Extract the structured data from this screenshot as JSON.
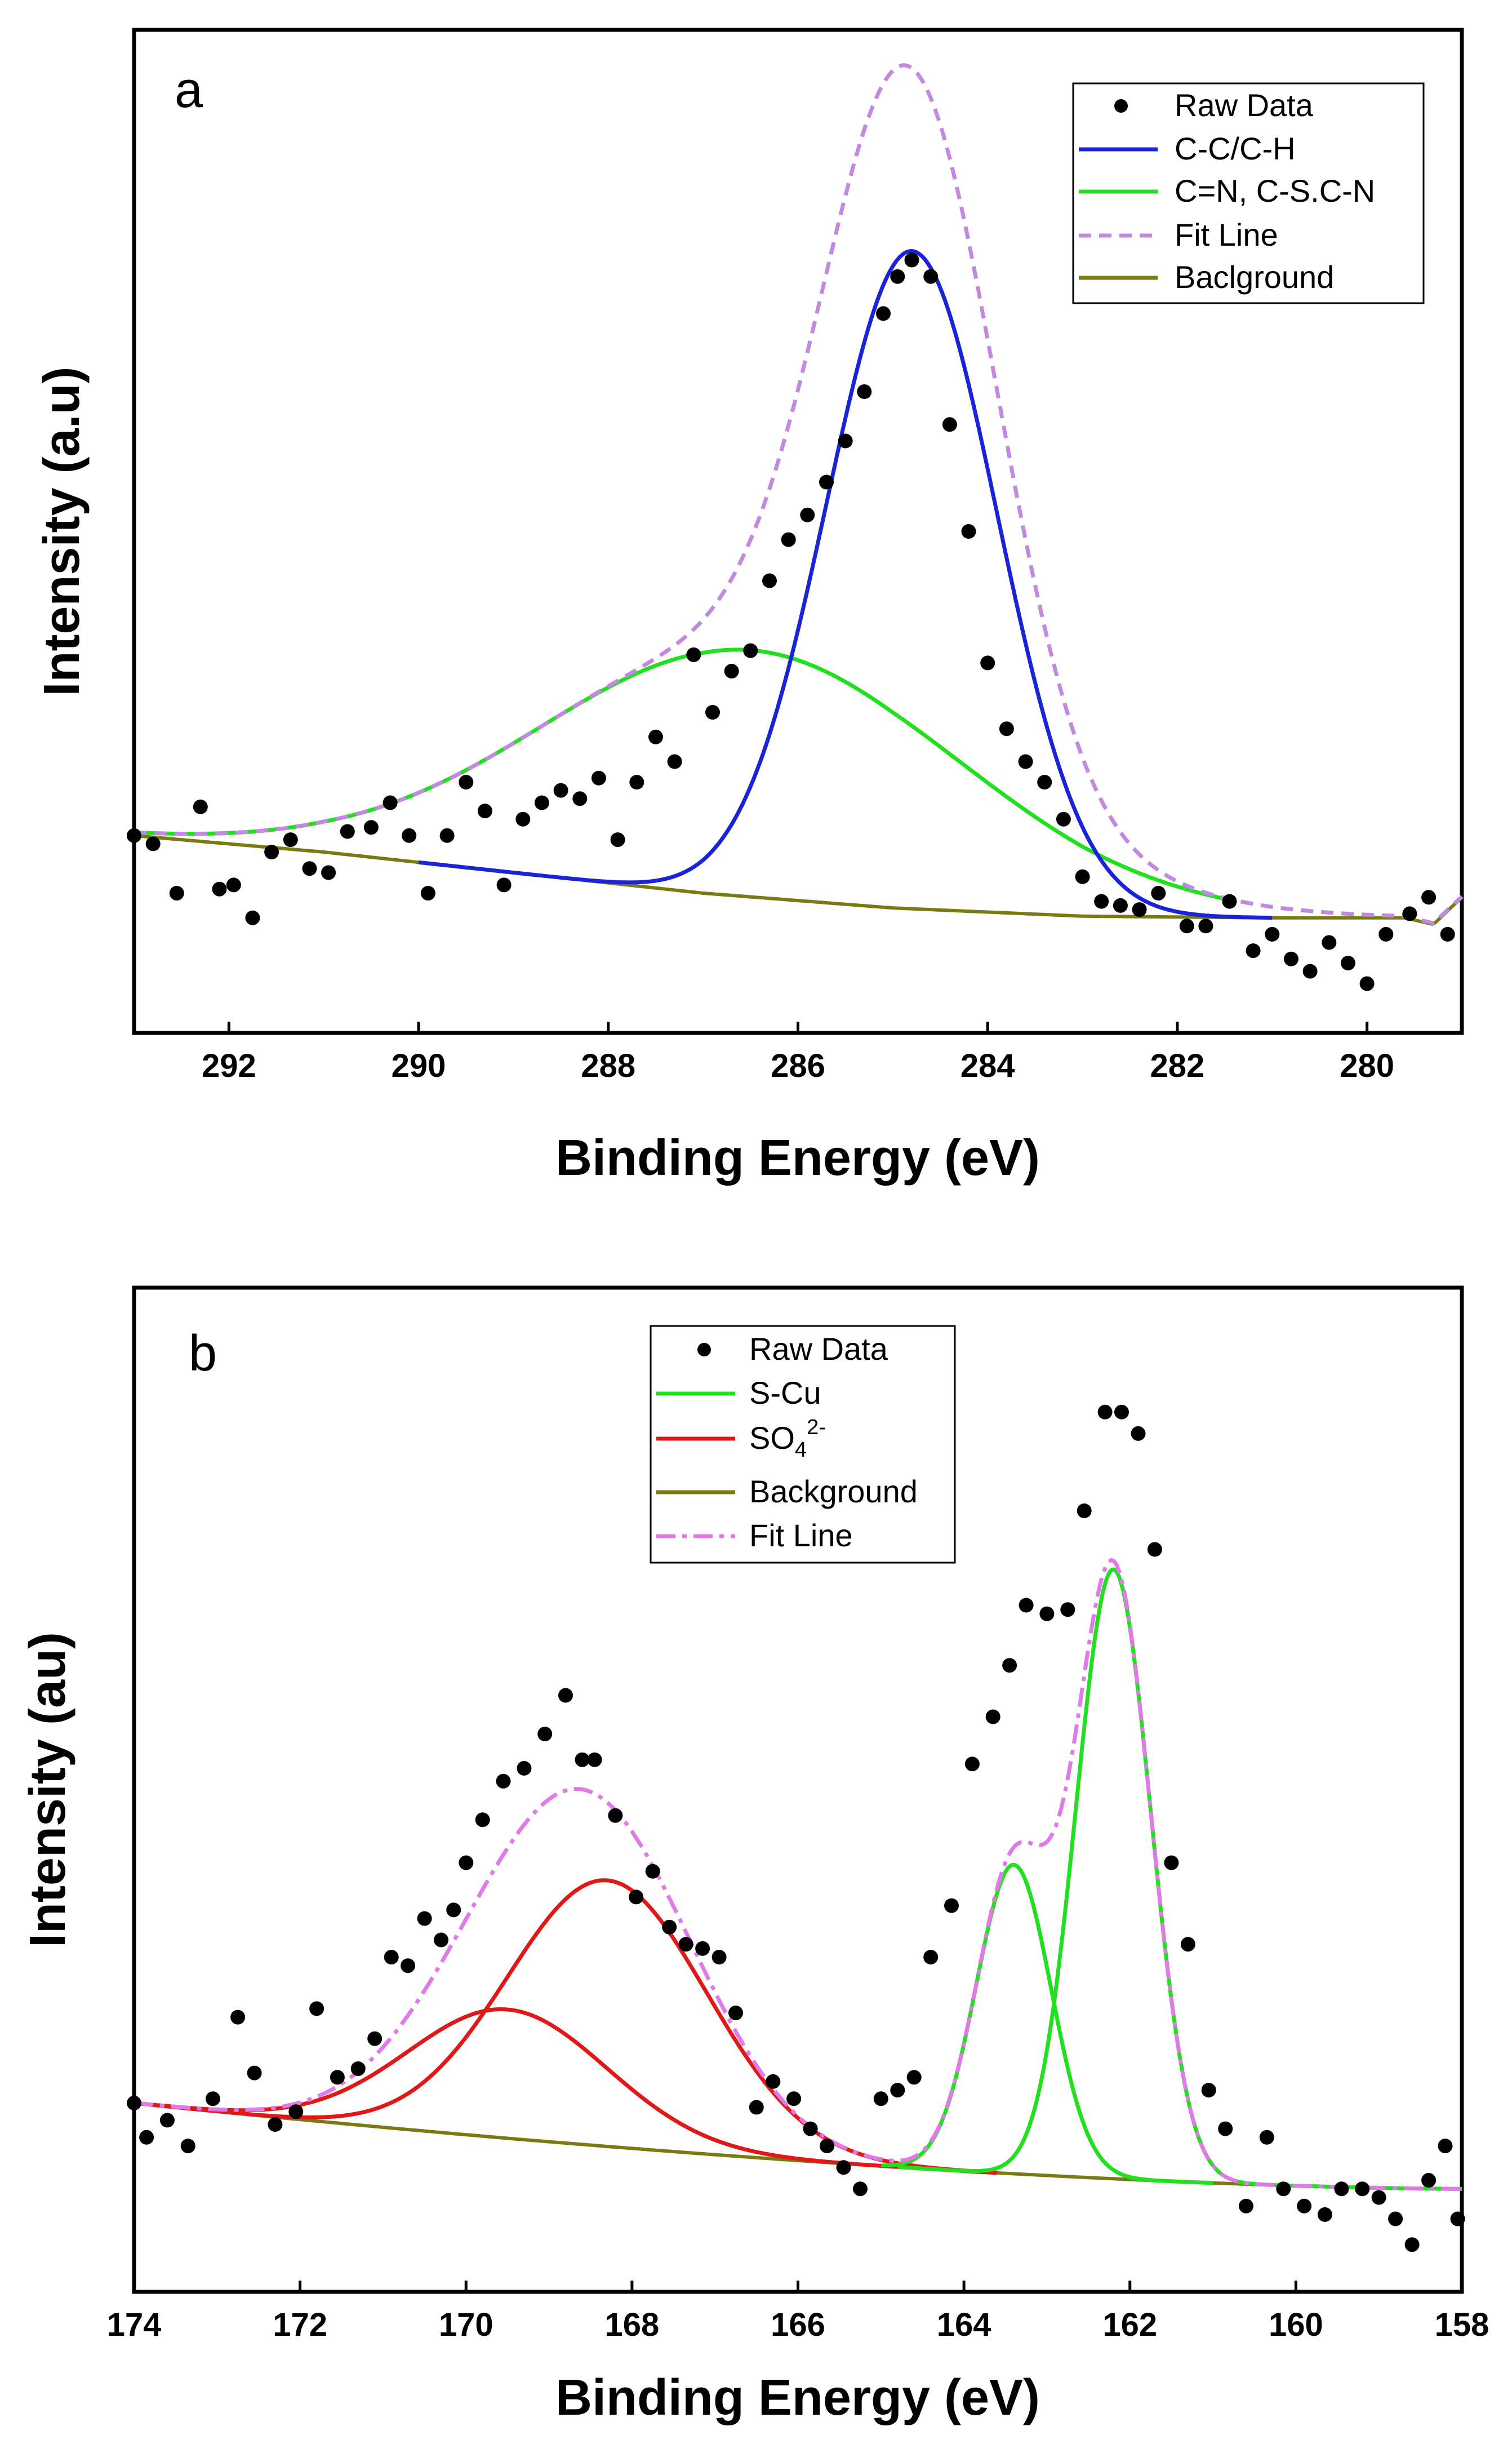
{
  "chart_data": [
    {
      "type": "scatter",
      "panel_label": "a",
      "xlabel": "Binding Energy (eV)",
      "ylabel": "Intensity (a.u)",
      "xlim": [
        293,
        279
      ],
      "ylim": [
        -0.12,
        1.1
      ],
      "x_ticks": [
        292,
        290,
        288,
        286,
        284,
        282,
        280
      ],
      "legend_position": "top-right",
      "legend": [
        "Raw Data",
        "C-C/C-H",
        "C=N, C-S.C-N",
        "Fit Line",
        "Baclground"
      ],
      "colors": {
        "raw": "#000000",
        "comp1": "#1a23d6",
        "comp2": "#22e01f",
        "fit": "#c08ae0",
        "background": "#7a7a12"
      },
      "background": {
        "points": [
          [
            293,
            0.12
          ],
          [
            291,
            0.1
          ],
          [
            289,
            0.075
          ],
          [
            287,
            0.05
          ],
          [
            285,
            0.032
          ],
          [
            283,
            0.022
          ],
          [
            281,
            0.02
          ],
          [
            279.6,
            0.02
          ],
          [
            279.3,
            0.012
          ],
          [
            279,
            0.045
          ]
        ]
      },
      "components": [
        {
          "name": "C-C/C-H",
          "center": 284.8,
          "height": 0.8,
          "width": 0.9,
          "range": [
            290,
            281
          ]
        },
        {
          "name": "C=N, C-S.C-N",
          "center": 286.5,
          "height": 0.3,
          "width": 2.2,
          "range": [
            293,
            281.5
          ]
        }
      ],
      "raw_data": [
        [
          293.0,
          0.12
        ],
        [
          292.8,
          0.11
        ],
        [
          292.55,
          0.05
        ],
        [
          292.3,
          0.155
        ],
        [
          292.1,
          0.055
        ],
        [
          291.95,
          0.06
        ],
        [
          291.75,
          0.02
        ],
        [
          291.55,
          0.1
        ],
        [
          291.35,
          0.115
        ],
        [
          291.15,
          0.08
        ],
        [
          290.95,
          0.075
        ],
        [
          290.75,
          0.125
        ],
        [
          290.5,
          0.13
        ],
        [
          290.3,
          0.16
        ],
        [
          290.1,
          0.12
        ],
        [
          289.9,
          0.05
        ],
        [
          289.7,
          0.12
        ],
        [
          289.5,
          0.185
        ],
        [
          289.3,
          0.15
        ],
        [
          289.1,
          0.06
        ],
        [
          288.9,
          0.14
        ],
        [
          288.7,
          0.16
        ],
        [
          288.5,
          0.175
        ],
        [
          288.3,
          0.165
        ],
        [
          288.1,
          0.19
        ],
        [
          287.9,
          0.115
        ],
        [
          287.7,
          0.185
        ],
        [
          287.5,
          0.24
        ],
        [
          287.3,
          0.21
        ],
        [
          287.1,
          0.34
        ],
        [
          286.9,
          0.27
        ],
        [
          286.7,
          0.32
        ],
        [
          286.5,
          0.345
        ],
        [
          286.3,
          0.43
        ],
        [
          286.1,
          0.48
        ],
        [
          285.9,
          0.51
        ],
        [
          285.7,
          0.55
        ],
        [
          285.5,
          0.6
        ],
        [
          285.3,
          0.66
        ],
        [
          285.1,
          0.755
        ],
        [
          284.95,
          0.8
        ],
        [
          284.8,
          0.82
        ],
        [
          284.6,
          0.8
        ],
        [
          284.4,
          0.62
        ],
        [
          284.2,
          0.49
        ],
        [
          284.0,
          0.33
        ],
        [
          283.8,
          0.25
        ],
        [
          283.6,
          0.21
        ],
        [
          283.4,
          0.185
        ],
        [
          283.2,
          0.14
        ],
        [
          283.0,
          0.07
        ],
        [
          282.8,
          0.04
        ],
        [
          282.6,
          0.035
        ],
        [
          282.4,
          0.03
        ],
        [
          282.2,
          0.05
        ],
        [
          281.9,
          0.01
        ],
        [
          281.7,
          0.01
        ],
        [
          281.45,
          0.04
        ],
        [
          281.2,
          -0.02
        ],
        [
          281.0,
          0.0
        ],
        [
          280.8,
          -0.03
        ],
        [
          280.6,
          -0.045
        ],
        [
          280.4,
          -0.01
        ],
        [
          280.2,
          -0.035
        ],
        [
          280.0,
          -0.06
        ],
        [
          279.8,
          0.0
        ],
        [
          279.55,
          0.025
        ],
        [
          279.35,
          0.045
        ],
        [
          279.15,
          0.0
        ]
      ]
    },
    {
      "type": "scatter",
      "panel_label": "b",
      "xlabel": "Binding Energy (eV)",
      "ylabel": "Intensity (au)",
      "xlim": [
        174,
        158
      ],
      "ylim": [
        -0.12,
        1.05
      ],
      "x_ticks": [
        174,
        172,
        170,
        168,
        166,
        164,
        162,
        160,
        158
      ],
      "legend_position": "top-center",
      "legend": [
        "Raw Data",
        "S-Cu",
        "SO42-",
        "Background",
        "Fit Line"
      ],
      "so4_label": {
        "base": "SO",
        "sub": "4",
        "sup": "2-"
      },
      "colors": {
        "raw": "#000000",
        "scu": "#22e01f",
        "so4": "#e01818",
        "background": "#7a7a12",
        "fit": "#e07ae6"
      },
      "background": {
        "start": [
          174,
          0.1
        ],
        "end": [
          158,
          0.0
        ]
      },
      "components": [
        {
          "name": "S-Cu",
          "center": 162.2,
          "height": 0.71,
          "width": 0.45,
          "range": [
            164.8,
            158.0
          ]
        },
        {
          "name": "S-Cu",
          "center": 163.4,
          "height": 0.36,
          "width": 0.45,
          "range": [
            165.0,
            161.0
          ]
        },
        {
          "name": "SO42-",
          "center": 169.5,
          "height": 0.15,
          "width": 1.2,
          "range": [
            174,
            163.6
          ]
        },
        {
          "name": "SO42-",
          "center": 168.3,
          "height": 0.31,
          "width": 1.2,
          "range": [
            174,
            163.6
          ]
        }
      ],
      "raw_data": [
        [
          174.0,
          0.1
        ],
        [
          173.85,
          0.06
        ],
        [
          173.6,
          0.08
        ],
        [
          173.35,
          0.05
        ],
        [
          173.05,
          0.105
        ],
        [
          172.75,
          0.2
        ],
        [
          172.55,
          0.135
        ],
        [
          172.3,
          0.075
        ],
        [
          172.05,
          0.09
        ],
        [
          171.8,
          0.21
        ],
        [
          171.55,
          0.13
        ],
        [
          171.3,
          0.14
        ],
        [
          171.1,
          0.175
        ],
        [
          170.9,
          0.27
        ],
        [
          170.7,
          0.26
        ],
        [
          170.5,
          0.315
        ],
        [
          170.3,
          0.29
        ],
        [
          170.15,
          0.325
        ],
        [
          170.0,
          0.38
        ],
        [
          169.8,
          0.43
        ],
        [
          169.55,
          0.475
        ],
        [
          169.3,
          0.49
        ],
        [
          169.05,
          0.53
        ],
        [
          168.8,
          0.575
        ],
        [
          168.6,
          0.5
        ],
        [
          168.45,
          0.5
        ],
        [
          168.2,
          0.435
        ],
        [
          167.95,
          0.34
        ],
        [
          167.75,
          0.37
        ],
        [
          167.55,
          0.305
        ],
        [
          167.35,
          0.285
        ],
        [
          167.15,
          0.28
        ],
        [
          166.95,
          0.27
        ],
        [
          166.75,
          0.205
        ],
        [
          166.5,
          0.095
        ],
        [
          166.3,
          0.125
        ],
        [
          166.05,
          0.105
        ],
        [
          165.85,
          0.07
        ],
        [
          165.65,
          0.05
        ],
        [
          165.45,
          0.025
        ],
        [
          165.25,
          0.0
        ],
        [
          165.0,
          0.105
        ],
        [
          164.8,
          0.115
        ],
        [
          164.6,
          0.13
        ],
        [
          164.4,
          0.27
        ],
        [
          164.15,
          0.33
        ],
        [
          163.9,
          0.495
        ],
        [
          163.65,
          0.55
        ],
        [
          163.45,
          0.61
        ],
        [
          163.25,
          0.68
        ],
        [
          163.0,
          0.67
        ],
        [
          162.75,
          0.675
        ],
        [
          162.55,
          0.79
        ],
        [
          162.3,
          0.905
        ],
        [
          162.1,
          0.905
        ],
        [
          161.9,
          0.88
        ],
        [
          161.7,
          0.745
        ],
        [
          161.5,
          0.38
        ],
        [
          161.3,
          0.285
        ],
        [
          161.05,
          0.115
        ],
        [
          160.85,
          0.07
        ],
        [
          160.6,
          -0.02
        ],
        [
          160.35,
          0.06
        ],
        [
          160.15,
          0.0
        ],
        [
          159.9,
          -0.02
        ],
        [
          159.65,
          -0.03
        ],
        [
          159.45,
          0.0
        ],
        [
          159.2,
          0.0
        ],
        [
          159.0,
          -0.01
        ],
        [
          158.8,
          -0.035
        ],
        [
          158.6,
          -0.065
        ],
        [
          158.4,
          0.01
        ],
        [
          158.2,
          0.05
        ],
        [
          158.05,
          -0.035
        ]
      ]
    }
  ]
}
